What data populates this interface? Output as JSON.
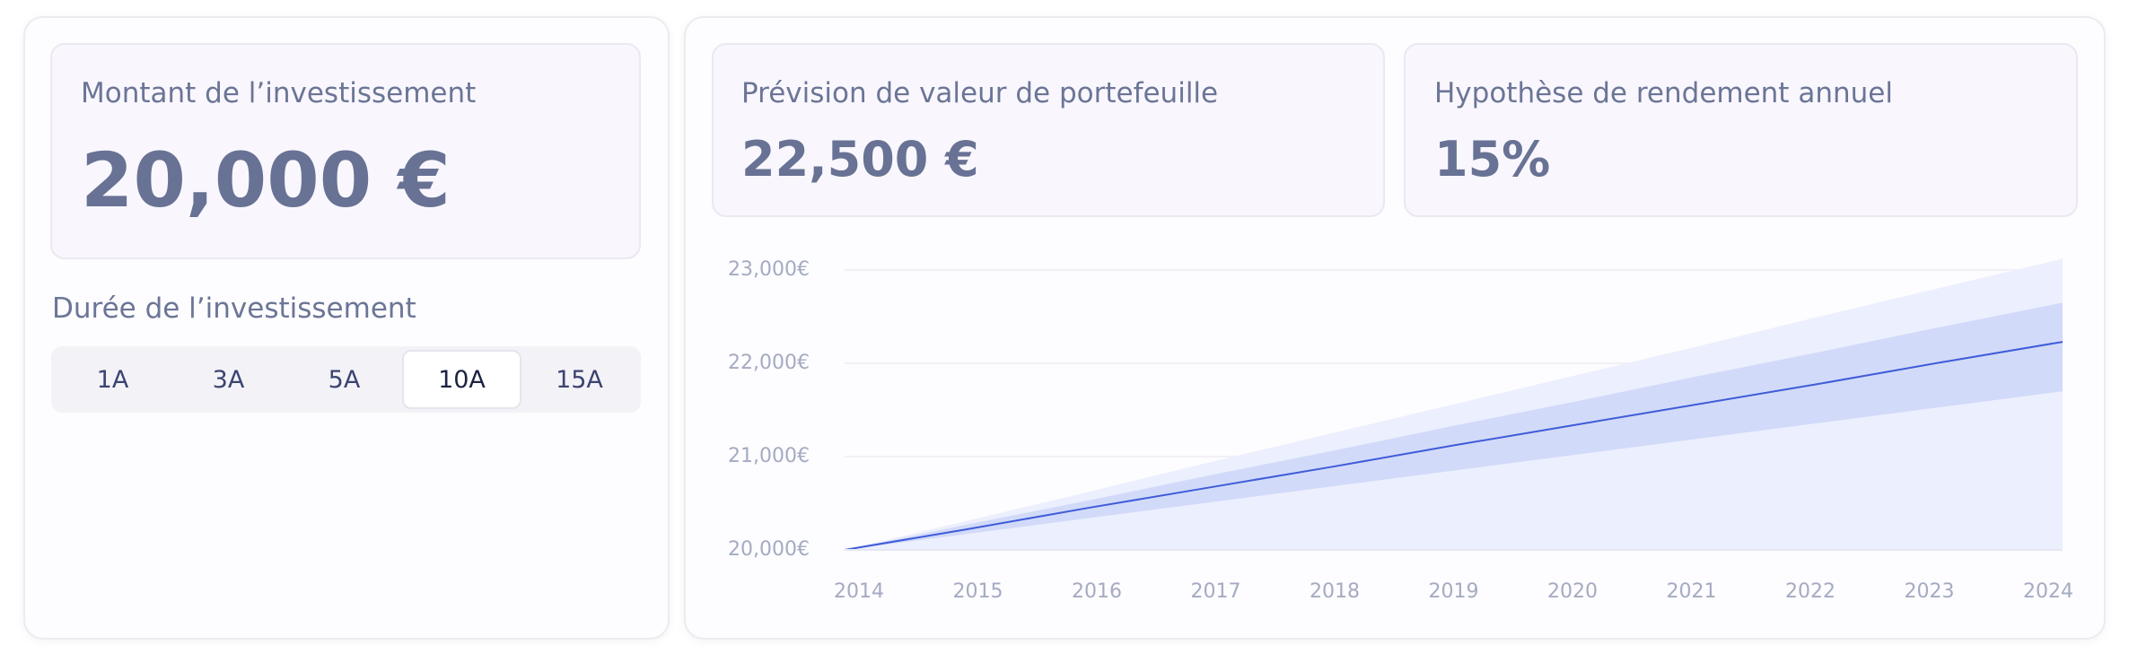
{
  "investment": {
    "label": "Montant de l’investissement",
    "amount": "20,000 €"
  },
  "duration": {
    "label": "Durée de l’investissement",
    "options": [
      "1A",
      "3A",
      "5A",
      "10A",
      "15A"
    ],
    "selected": 3
  },
  "kpis": [
    {
      "label": "Prévision de valeur de portefeuille",
      "value": "22,500 €"
    },
    {
      "label": "Hypothèse de rendement annuel",
      "value": "15%"
    }
  ],
  "chart_data": {
    "type": "line",
    "x": [
      2014,
      2015,
      2016,
      2017,
      2018,
      2019,
      2020,
      2021,
      2022,
      2023,
      2024
    ],
    "xlim": [
      2014,
      2024
    ],
    "xticks": [
      2014,
      2015,
      2016,
      2017,
      2018,
      2019,
      2020,
      2021,
      2022,
      2023,
      2024
    ],
    "ylim": [
      20000,
      23000
    ],
    "yticks": [
      {
        "value": 20000,
        "label": "20,000€"
      },
      {
        "value": 21000,
        "label": "21,000€"
      },
      {
        "value": 22000,
        "label": "22,000€"
      },
      {
        "value": 23000,
        "label": "23,000€"
      }
    ],
    "grid": true,
    "series": [
      {
        "kind": "area",
        "color": "#eceffd",
        "values": [
          20000,
          20310,
          20620,
          20940,
          21250,
          21560,
          21870,
          22180,
          22500,
          22810,
          23120
        ]
      },
      {
        "kind": "band",
        "color": "#d2dafa",
        "low": [
          20000,
          20170,
          20340,
          20510,
          20680,
          20850,
          21020,
          21190,
          21360,
          21530,
          21700
        ],
        "high": [
          20000,
          20270,
          20530,
          20800,
          21060,
          21330,
          21590,
          21860,
          22120,
          22390,
          22650
        ]
      },
      {
        "kind": "line",
        "color": "#3f5cd8",
        "values": [
          20000,
          20220,
          20450,
          20670,
          20890,
          21120,
          21340,
          21560,
          21780,
          22010,
          22230
        ]
      }
    ]
  }
}
